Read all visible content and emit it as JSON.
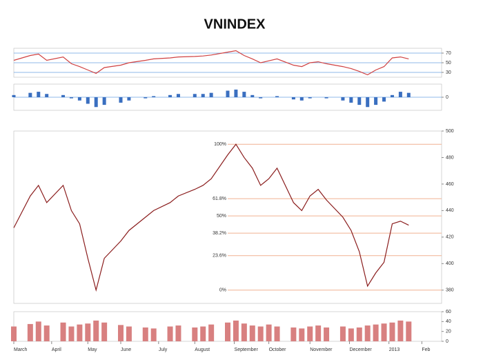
{
  "chart_data": [
    {
      "type": "line",
      "color": "#d04040",
      "xlim": [
        0,
        52
      ],
      "ylim": [
        20,
        80
      ],
      "yticks": [
        30,
        50,
        70
      ],
      "grid": true,
      "x": [
        0,
        2,
        3,
        4,
        6,
        7,
        8,
        9,
        10,
        11,
        13,
        14,
        16,
        17,
        19,
        20,
        22,
        23,
        24,
        26,
        27,
        28,
        29,
        30,
        31,
        32,
        34,
        35,
        36,
        37,
        38,
        40,
        41,
        42,
        43,
        44,
        45,
        46,
        47,
        48
      ],
      "values": [
        55,
        65,
        68,
        55,
        62,
        48,
        42,
        35,
        28,
        40,
        45,
        50,
        55,
        58,
        60,
        62,
        63,
        64,
        66,
        72,
        75,
        65,
        58,
        50,
        54,
        58,
        45,
        42,
        50,
        52,
        48,
        42,
        38,
        32,
        25,
        35,
        42,
        60,
        62,
        58
      ]
    },
    {
      "type": "bar",
      "color": "#3a6fc0",
      "xlim": [
        0,
        52
      ],
      "ylim": [
        -12,
        12
      ],
      "yticks": [
        0
      ],
      "grid": true,
      "x": [
        0,
        2,
        3,
        4,
        6,
        7,
        8,
        9,
        10,
        11,
        13,
        14,
        16,
        17,
        19,
        20,
        22,
        23,
        24,
        26,
        27,
        28,
        29,
        30,
        31,
        32,
        34,
        35,
        36,
        37,
        38,
        40,
        41,
        42,
        43,
        44,
        45,
        46,
        47,
        48
      ],
      "values": [
        2,
        4,
        5,
        3,
        2,
        -1,
        -3,
        -6,
        -9,
        -7,
        -5,
        -3,
        -1,
        1,
        2,
        3,
        3,
        3,
        4,
        6,
        7,
        5,
        2,
        -1,
        0,
        1,
        -2,
        -3,
        -1,
        0,
        -1,
        -3,
        -5,
        -7,
        -9,
        -7,
        -4,
        2,
        5,
        4
      ]
    },
    {
      "type": "line",
      "title": "VNINDEX",
      "color": "#8a1c1c",
      "xlim": [
        0,
        52
      ],
      "ylim": [
        370,
        500
      ],
      "yticks": [
        380,
        400,
        420,
        440,
        460,
        480,
        500
      ],
      "grid": false,
      "x": [
        0,
        2,
        3,
        4,
        6,
        7,
        8,
        9,
        10,
        11,
        13,
        14,
        16,
        17,
        19,
        20,
        22,
        23,
        24,
        26,
        27,
        28,
        29,
        30,
        31,
        32,
        34,
        35,
        36,
        37,
        38,
        40,
        41,
        42,
        43,
        44,
        45,
        46,
        47,
        48
      ],
      "values": [
        427,
        451,
        459,
        446,
        459,
        440,
        430,
        404,
        380,
        404,
        417,
        425,
        435,
        440,
        446,
        451,
        456,
        459,
        464,
        482,
        490,
        480,
        472,
        459,
        464,
        472,
        446,
        440,
        451,
        456,
        448,
        435,
        425,
        409,
        383,
        393,
        401,
        430,
        432,
        429
      ],
      "levels": [
        {
          "label": "100%",
          "value": 490
        },
        {
          "label": "61.8%",
          "value": 449
        },
        {
          "label": "50%",
          "value": 436
        },
        {
          "label": "38.2%",
          "value": 423
        },
        {
          "label": "23.6%",
          "value": 406
        },
        {
          "label": "0%",
          "value": 380
        }
      ],
      "level_color": "#f0b090"
    },
    {
      "type": "bar",
      "color": "#d88080",
      "xlim": [
        0,
        52
      ],
      "ylim": [
        0,
        60
      ],
      "yticks": [
        0,
        20,
        40,
        60
      ],
      "grid": false,
      "x": [
        0,
        2,
        3,
        4,
        6,
        7,
        8,
        9,
        10,
        11,
        13,
        14,
        16,
        17,
        19,
        20,
        22,
        23,
        24,
        26,
        27,
        28,
        29,
        30,
        31,
        32,
        34,
        35,
        36,
        37,
        38,
        40,
        41,
        42,
        43,
        44,
        45,
        46,
        47,
        48
      ],
      "values": [
        30,
        35,
        40,
        32,
        38,
        30,
        34,
        36,
        42,
        38,
        33,
        30,
        28,
        26,
        30,
        32,
        28,
        30,
        34,
        38,
        42,
        36,
        32,
        30,
        34,
        30,
        28,
        26,
        30,
        32,
        28,
        30,
        26,
        28,
        32,
        34,
        36,
        38,
        42,
        40
      ],
      "xticks": [
        {
          "value": 0,
          "label": "March"
        },
        {
          "value": 4.6,
          "label": "April"
        },
        {
          "value": 9,
          "label": "May"
        },
        {
          "value": 13,
          "label": "June"
        },
        {
          "value": 17.6,
          "label": "July"
        },
        {
          "value": 22,
          "label": "August"
        },
        {
          "value": 26.8,
          "label": "September"
        },
        {
          "value": 31,
          "label": "October"
        },
        {
          "value": 36,
          "label": "November"
        },
        {
          "value": 40.8,
          "label": "December"
        },
        {
          "value": 45.6,
          "label": "2013"
        },
        {
          "value": 49.6,
          "label": "Feb"
        }
      ]
    }
  ]
}
